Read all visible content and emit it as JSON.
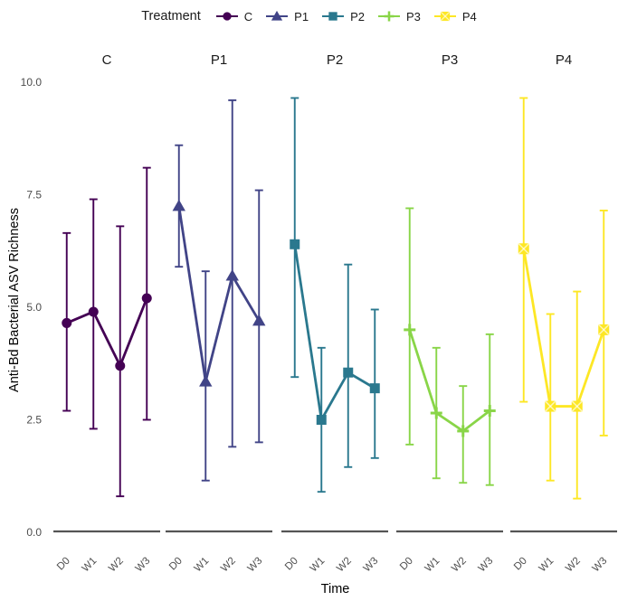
{
  "chart_data": {
    "type": "line",
    "title": "",
    "xlabel": "Time",
    "ylabel": "Anti-Bd Bacterial ASV Richness",
    "x": [
      "D0",
      "W1",
      "W2",
      "W3"
    ],
    "ylim": [
      0,
      10
    ],
    "yticks": [
      0,
      2.5,
      5,
      7.5,
      10
    ],
    "ytick_labels": [
      "0.0",
      "2.5",
      "5.0",
      "7.5",
      "10.0"
    ],
    "grid": false,
    "background": "#ffffff",
    "error_bars": true,
    "legend": {
      "title": "Treatment",
      "position": "top"
    },
    "facets": [
      {
        "label": "C",
        "marker": "circle",
        "color": "#440154",
        "means": [
          4.65,
          4.9,
          3.7,
          5.2
        ],
        "lower": [
          2.7,
          2.3,
          0.8,
          2.5
        ],
        "upper": [
          6.65,
          7.4,
          6.8,
          8.1
        ]
      },
      {
        "label": "P1",
        "marker": "triangle",
        "color": "#414487",
        "means": [
          7.25,
          3.35,
          5.7,
          4.7
        ],
        "lower": [
          5.9,
          1.15,
          1.9,
          2.0
        ],
        "upper": [
          8.6,
          5.8,
          9.6,
          7.6
        ]
      },
      {
        "label": "P2",
        "marker": "square",
        "color": "#2a788e",
        "means": [
          6.4,
          2.5,
          3.55,
          3.2
        ],
        "lower": [
          3.45,
          0.9,
          1.45,
          1.65
        ],
        "upper": [
          9.65,
          4.1,
          5.95,
          4.95
        ]
      },
      {
        "label": "P3",
        "marker": "plus",
        "color": "#89d548",
        "means": [
          4.5,
          2.65,
          2.25,
          2.7
        ],
        "lower": [
          1.95,
          1.2,
          1.1,
          1.05
        ],
        "upper": [
          7.2,
          4.1,
          3.25,
          4.4
        ]
      },
      {
        "label": "P4",
        "marker": "square-cross",
        "color": "#fde725",
        "means": [
          6.3,
          2.8,
          2.8,
          4.5
        ],
        "lower": [
          2.9,
          1.15,
          0.75,
          2.15
        ],
        "upper": [
          9.65,
          4.85,
          5.35,
          7.15
        ]
      }
    ],
    "style": {
      "axis_line_color": "#555555",
      "tick_label_color": "#4d4d4d",
      "text_color": "#1a1a1a"
    }
  }
}
